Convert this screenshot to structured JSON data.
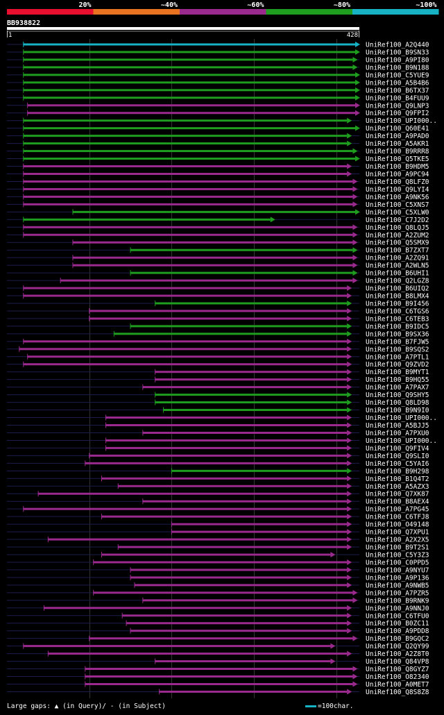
{
  "chart_data": {
    "type": "alignment-overview",
    "query_id": "BB938822",
    "query_length": 428,
    "scale_start_label": "1",
    "scale_end_label": "428",
    "identity_legend": [
      {
        "label": "20%",
        "color": "#e8102e"
      },
      {
        "label": "~40%",
        "color": "#e87320"
      },
      {
        "label": "~60%",
        "color": "#9b2a8f"
      },
      {
        "label": "~80%",
        "color": "#1e9d1e"
      },
      {
        "label": "~100%",
        "color": "#17b3c4"
      }
    ],
    "footer": {
      "gaps_prefix": "Large gaps: ",
      "gaps_query": "(in Query)/",
      "gaps_subject_mark": "-",
      "gaps_subject": " (in Subject)",
      "scale_label": "=100char."
    },
    "hits": [
      {
        "name": "UniRef100_A2Q440",
        "start": 20,
        "end": 428,
        "identity": 100
      },
      {
        "name": "UniRef100_B9SN33",
        "start": 20,
        "end": 428,
        "identity": 80
      },
      {
        "name": "UniRef100_A9PI80",
        "start": 20,
        "end": 425,
        "identity": 80
      },
      {
        "name": "UniRef100_B9N188",
        "start": 20,
        "end": 425,
        "identity": 80
      },
      {
        "name": "UniRef100_C5YUE9",
        "start": 20,
        "end": 428,
        "identity": 80
      },
      {
        "name": "UniRef100_A5B4B6",
        "start": 20,
        "end": 428,
        "identity": 80
      },
      {
        "name": "UniRef100_B6TX37",
        "start": 20,
        "end": 428,
        "identity": 80
      },
      {
        "name": "UniRef100_B4FUU9",
        "start": 20,
        "end": 428,
        "identity": 80
      },
      {
        "name": "UniRef100_Q9LNP3",
        "start": 25,
        "end": 428,
        "identity": 60
      },
      {
        "name": "UniRef100_Q9FPI2",
        "start": 25,
        "end": 428,
        "identity": 60
      },
      {
        "name": "UniRef100_UPI000..",
        "start": 20,
        "end": 418,
        "identity": 80
      },
      {
        "name": "UniRef100_Q60E41",
        "start": 20,
        "end": 428,
        "identity": 80
      },
      {
        "name": "UniRef100_A9PAD0",
        "start": 20,
        "end": 418,
        "identity": 80
      },
      {
        "name": "UniRef100_A5AKR1",
        "start": 20,
        "end": 418,
        "identity": 80
      },
      {
        "name": "UniRef100_B9RRR8",
        "start": 20,
        "end": 425,
        "identity": 80
      },
      {
        "name": "UniRef100_Q5TKE5",
        "start": 20,
        "end": 428,
        "identity": 80
      },
      {
        "name": "UniRef100_B9HDM5",
        "start": 20,
        "end": 418,
        "identity": 60
      },
      {
        "name": "UniRef100_A9PC94",
        "start": 20,
        "end": 418,
        "identity": 60
      },
      {
        "name": "UniRef100_Q8LFZ0",
        "start": 20,
        "end": 425,
        "identity": 60
      },
      {
        "name": "UniRef100_Q9LYI4",
        "start": 20,
        "end": 425,
        "identity": 60
      },
      {
        "name": "UniRef100_A9NK56",
        "start": 20,
        "end": 425,
        "identity": 60
      },
      {
        "name": "UniRef100_C5XNS7",
        "start": 20,
        "end": 425,
        "identity": 60
      },
      {
        "name": "UniRef100_C5XLW0",
        "start": 80,
        "end": 428,
        "identity": 80
      },
      {
        "name": "UniRef100_C7J2D2",
        "start": 20,
        "end": 325,
        "identity": 80
      },
      {
        "name": "UniRef100_Q8LQJ5",
        "start": 20,
        "end": 425,
        "identity": 60
      },
      {
        "name": "UniRef100_A2ZUM2",
        "start": 20,
        "end": 425,
        "identity": 60
      },
      {
        "name": "UniRef100_Q5SMX9",
        "start": 80,
        "end": 425,
        "identity": 60
      },
      {
        "name": "UniRef100_B7ZXT7",
        "start": 150,
        "end": 425,
        "identity": 80
      },
      {
        "name": "UniRef100_A2ZQ91",
        "start": 80,
        "end": 425,
        "identity": 60
      },
      {
        "name": "UniRef100_A2WLN5",
        "start": 80,
        "end": 425,
        "identity": 60
      },
      {
        "name": "UniRef100_B6UHI1",
        "start": 150,
        "end": 425,
        "identity": 80
      },
      {
        "name": "UniRef100_Q2LGZ8",
        "start": 65,
        "end": 425,
        "identity": 60
      },
      {
        "name": "UniRef100_B6UIQ2",
        "start": 20,
        "end": 418,
        "identity": 60
      },
      {
        "name": "UniRef100_B8LMX4",
        "start": 20,
        "end": 418,
        "identity": 60
      },
      {
        "name": "UniRef100_B9I456",
        "start": 180,
        "end": 418,
        "identity": 80
      },
      {
        "name": "UniRef100_C6TGS6",
        "start": 100,
        "end": 418,
        "identity": 60
      },
      {
        "name": "UniRef100_C6TEB3",
        "start": 100,
        "end": 418,
        "identity": 60
      },
      {
        "name": "UniRef100_B9IDC5",
        "start": 150,
        "end": 418,
        "identity": 80
      },
      {
        "name": "UniRef100_B9SX36",
        "start": 130,
        "end": 418,
        "identity": 80
      },
      {
        "name": "UniRef100_B7FJW5",
        "start": 20,
        "end": 418,
        "identity": 60
      },
      {
        "name": "UniRef100_B9SQS2",
        "start": 15,
        "end": 418,
        "identity": 60
      },
      {
        "name": "UniRef100_A7PTL1",
        "start": 25,
        "end": 418,
        "identity": 60
      },
      {
        "name": "UniRef100_Q9ZVD2",
        "start": 20,
        "end": 418,
        "identity": 60
      },
      {
        "name": "UniRef100_B9MYT1",
        "start": 180,
        "end": 418,
        "identity": 60
      },
      {
        "name": "UniRef100_B9HQ55",
        "start": 180,
        "end": 418,
        "identity": 60
      },
      {
        "name": "UniRef100_A7PAX7",
        "start": 165,
        "end": 418,
        "identity": 60
      },
      {
        "name": "UniRef100_Q9SHY5",
        "start": 180,
        "end": 418,
        "identity": 80
      },
      {
        "name": "UniRef100_Q8LD98",
        "start": 180,
        "end": 418,
        "identity": 80
      },
      {
        "name": "UniRef100_B9N9I0",
        "start": 190,
        "end": 418,
        "identity": 80
      },
      {
        "name": "UniRef100_UPI000..",
        "start": 120,
        "end": 418,
        "identity": 60
      },
      {
        "name": "UniRef100_A5BJJ5",
        "start": 120,
        "end": 418,
        "identity": 60
      },
      {
        "name": "UniRef100_A7PXU0",
        "start": 165,
        "end": 418,
        "identity": 60
      },
      {
        "name": "UniRef100_UPI000..",
        "start": 120,
        "end": 418,
        "identity": 60
      },
      {
        "name": "UniRef100_Q9FIV4",
        "start": 120,
        "end": 418,
        "identity": 60
      },
      {
        "name": "UniRef100_Q9SLI0",
        "start": 100,
        "end": 418,
        "identity": 60
      },
      {
        "name": "UniRef100_C5YAI6",
        "start": 95,
        "end": 418,
        "identity": 60
      },
      {
        "name": "UniRef100_B9H298",
        "start": 200,
        "end": 418,
        "identity": 80
      },
      {
        "name": "UniRef100_B1Q4T2",
        "start": 115,
        "end": 418,
        "identity": 60
      },
      {
        "name": "UniRef100_A5AZX3",
        "start": 135,
        "end": 418,
        "identity": 60
      },
      {
        "name": "UniRef100_Q7XK87",
        "start": 38,
        "end": 418,
        "identity": 60
      },
      {
        "name": "UniRef100_B8AEX4",
        "start": 165,
        "end": 418,
        "identity": 60
      },
      {
        "name": "UniRef100_A7PG45",
        "start": 20,
        "end": 418,
        "identity": 60
      },
      {
        "name": "UniRef100_C6TFJ8",
        "start": 115,
        "end": 418,
        "identity": 60
      },
      {
        "name": "UniRef100_O49148",
        "start": 200,
        "end": 418,
        "identity": 60
      },
      {
        "name": "UniRef100_Q7XPU1",
        "start": 200,
        "end": 418,
        "identity": 60
      },
      {
        "name": "UniRef100_A2X2X5",
        "start": 50,
        "end": 418,
        "identity": 60
      },
      {
        "name": "UniRef100_B9T2S1",
        "start": 135,
        "end": 418,
        "identity": 60
      },
      {
        "name": "UniRef100_C5Y3Z3",
        "start": 115,
        "end": 398,
        "identity": 60
      },
      {
        "name": "UniRef100_C0PPD5",
        "start": 105,
        "end": 418,
        "identity": 60
      },
      {
        "name": "UniRef100_A9NYU7",
        "start": 150,
        "end": 418,
        "identity": 60
      },
      {
        "name": "UniRef100_A9P136",
        "start": 150,
        "end": 418,
        "identity": 60
      },
      {
        "name": "UniRef100_A9NWB5",
        "start": 155,
        "end": 418,
        "identity": 60
      },
      {
        "name": "UniRef100_A7PZR5",
        "start": 105,
        "end": 425,
        "identity": 60
      },
      {
        "name": "UniRef100_B9RNK9",
        "start": 165,
        "end": 425,
        "identity": 60
      },
      {
        "name": "UniRef100_A9NNJ0",
        "start": 45,
        "end": 418,
        "identity": 60
      },
      {
        "name": "UniRef100_C6TFU0",
        "start": 140,
        "end": 418,
        "identity": 60
      },
      {
        "name": "UniRef100_B0ZC11",
        "start": 145,
        "end": 418,
        "identity": 60
      },
      {
        "name": "UniRef100_A9PDD8",
        "start": 150,
        "end": 418,
        "identity": 60
      },
      {
        "name": "UniRef100_B9GQC2",
        "start": 100,
        "end": 425,
        "identity": 60
      },
      {
        "name": "UniRef100_Q2QY99",
        "start": 20,
        "end": 398,
        "identity": 60
      },
      {
        "name": "UniRef100_A2Z8T0",
        "start": 50,
        "end": 418,
        "identity": 60
      },
      {
        "name": "UniRef100_Q84VP8",
        "start": 180,
        "end": 398,
        "identity": 60
      },
      {
        "name": "UniRef100_Q8GYZ7",
        "start": 95,
        "end": 425,
        "identity": 60
      },
      {
        "name": "UniRef100_O82340",
        "start": 95,
        "end": 425,
        "identity": 60
      },
      {
        "name": "UniRef100_A0MET7",
        "start": 95,
        "end": 425,
        "identity": 60
      },
      {
        "name": "UniRef100_Q8S8Z8",
        "start": 185,
        "end": 418,
        "identity": 60
      }
    ]
  }
}
